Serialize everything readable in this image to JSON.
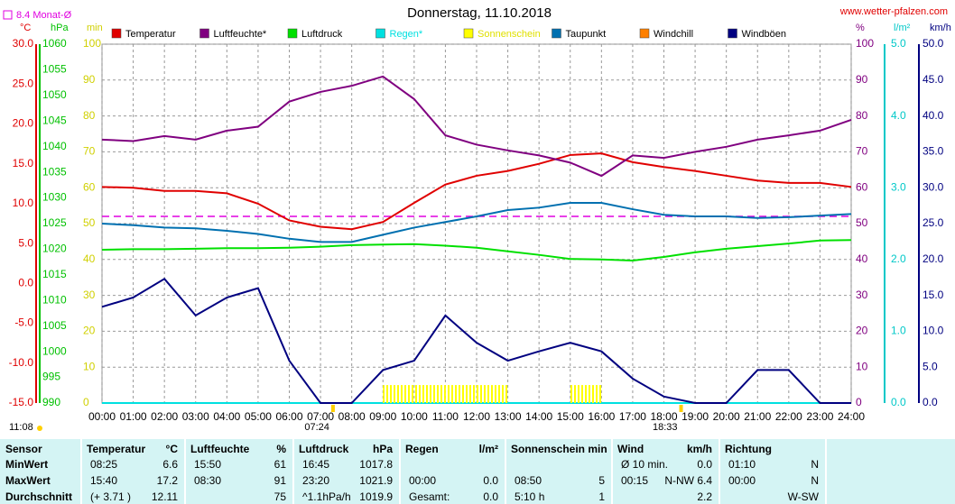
{
  "chart_data": {
    "type": "line",
    "title": "Donnerstag, 11.10.2018",
    "site": "www.wetter-pfalzen.com",
    "monthly_avg": {
      "label": "8.4 Monat-Ø",
      "value": 8.4,
      "color": "#e000e0",
      "axis": "y_temp"
    },
    "grid": true,
    "x": [
      0,
      1,
      2,
      3,
      4,
      5,
      6,
      7,
      8,
      9,
      10,
      11,
      12,
      13,
      14,
      15,
      16,
      17,
      18,
      19,
      20,
      21,
      22,
      23,
      24
    ],
    "xlim": [
      0,
      24
    ],
    "xticks": [
      {
        "value": 0,
        "label": "00:00"
      },
      {
        "value": 1,
        "label": "01:00"
      },
      {
        "value": 2,
        "label": "02:00"
      },
      {
        "value": 3,
        "label": "03:00"
      },
      {
        "value": 4,
        "label": "04:00"
      },
      {
        "value": 5,
        "label": "05:00"
      },
      {
        "value": 6,
        "label": "06:00"
      },
      {
        "value": 7,
        "label": "07:00"
      },
      {
        "value": 8,
        "label": "08:00"
      },
      {
        "value": 9,
        "label": "09:00"
      },
      {
        "value": 10,
        "label": "10:00"
      },
      {
        "value": 11,
        "label": "11:00"
      },
      {
        "value": 12,
        "label": "12:00"
      },
      {
        "value": 13,
        "label": "13:00"
      },
      {
        "value": 14,
        "label": "14:00"
      },
      {
        "value": 15,
        "label": "15:00"
      },
      {
        "value": 16,
        "label": "16:00"
      },
      {
        "value": 17,
        "label": "17:00"
      },
      {
        "value": 18,
        "label": "18:00"
      },
      {
        "value": 19,
        "label": "19:00"
      },
      {
        "value": 20,
        "label": "20:00"
      },
      {
        "value": 21,
        "label": "21:00"
      },
      {
        "value": 22,
        "label": "22:00"
      },
      {
        "value": 23,
        "label": "23:00"
      },
      {
        "value": 24,
        "label": "24:00"
      }
    ],
    "axes": {
      "y_temp": {
        "unit": "°C",
        "color": "#e00000",
        "lim": [
          -15,
          30
        ],
        "ticks": [
          {
            "value": -15,
            "label": "-15.0"
          },
          {
            "value": -10,
            "label": "-10.0"
          },
          {
            "value": -5,
            "label": "-5.0"
          },
          {
            "value": 0,
            "label": "0.0"
          },
          {
            "value": 5,
            "label": "5.0"
          },
          {
            "value": 10,
            "label": "10.0"
          },
          {
            "value": 15,
            "label": "15.0"
          },
          {
            "value": 20,
            "label": "20.0"
          },
          {
            "value": 25,
            "label": "25.0"
          },
          {
            "value": 30,
            "label": "30.0"
          }
        ]
      },
      "y_press": {
        "unit": "hPa",
        "color": "#00c000",
        "lim": [
          990,
          1060
        ],
        "ticks": [
          990,
          995,
          1000,
          1005,
          1010,
          1015,
          1020,
          1025,
          1030,
          1035,
          1040,
          1045,
          1050,
          1055,
          1060
        ]
      },
      "y_min": {
        "unit": "min",
        "color": "#d0d000",
        "lim": [
          0,
          100
        ],
        "ticks": [
          0,
          10,
          20,
          30,
          40,
          50,
          60,
          70,
          80,
          90,
          100
        ]
      },
      "y_pct": {
        "unit": "%",
        "color": "#800080",
        "lim": [
          0,
          100
        ],
        "ticks": [
          0,
          10,
          20,
          30,
          40,
          50,
          60,
          70,
          80,
          90,
          100
        ]
      },
      "y_rain": {
        "unit": "l/m²",
        "color": "#00c8c8",
        "lim": [
          0,
          5
        ],
        "ticks": [
          {
            "value": 0,
            "label": "0.0"
          },
          {
            "value": 1,
            "label": "1.0"
          },
          {
            "value": 2,
            "label": "2.0"
          },
          {
            "value": 3,
            "label": "3.0"
          },
          {
            "value": 4,
            "label": "4.0"
          },
          {
            "value": 5,
            "label": "5.0"
          }
        ]
      },
      "y_wind": {
        "unit": "km/h",
        "color": "#000080",
        "lim": [
          0,
          50
        ],
        "ticks": [
          {
            "value": 0,
            "label": "0.0"
          },
          {
            "value": 5,
            "label": "5.0"
          },
          {
            "value": 10,
            "label": "10.0"
          },
          {
            "value": 15,
            "label": "15.0"
          },
          {
            "value": 20,
            "label": "20.0"
          },
          {
            "value": 25,
            "label": "25.0"
          },
          {
            "value": 30,
            "label": "30.0"
          },
          {
            "value": 35,
            "label": "35.0"
          },
          {
            "value": 40,
            "label": "40.0"
          },
          {
            "value": 45,
            "label": "45.0"
          },
          {
            "value": 50,
            "label": "50.0"
          }
        ]
      }
    },
    "series": [
      {
        "name": "Temperatur",
        "color": "#e00000",
        "axis": "y_temp",
        "values": [
          12.1,
          12.0,
          11.6,
          11.6,
          11.3,
          10.0,
          7.9,
          7.1,
          6.8,
          7.7,
          10.1,
          12.4,
          13.5,
          14.1,
          15.0,
          16.1,
          16.3,
          15.2,
          14.6,
          14.1,
          13.5,
          12.9,
          12.6,
          12.6,
          12.1
        ]
      },
      {
        "name": "Luftfeuchte*",
        "color": "#800080",
        "axis": "y_pct",
        "values": [
          73.4,
          73,
          74.4,
          73.4,
          75.9,
          77,
          84,
          86.7,
          88.4,
          91,
          84.7,
          74.6,
          72,
          70.4,
          69,
          67,
          63.3,
          69,
          68.3,
          70,
          71.4,
          73.4,
          74.6,
          75.9,
          78.9
        ]
      },
      {
        "name": "Luftdruck",
        "color": "#00e000",
        "axis": "y_press",
        "values": [
          1019.9,
          1020.0,
          1020.0,
          1020.1,
          1020.2,
          1020.2,
          1020.3,
          1020.5,
          1020.8,
          1020.9,
          1021.0,
          1020.7,
          1020.3,
          1019.6,
          1018.9,
          1018.1,
          1018.0,
          1017.8,
          1018.5,
          1019.4,
          1020.1,
          1020.6,
          1021.1,
          1021.7,
          1021.8
        ]
      },
      {
        "name": "Regen*",
        "color": "#00e0e0",
        "label_color": "#00e0e0",
        "axis": "y_rain",
        "values": [
          0,
          0,
          0,
          0,
          0,
          0,
          0,
          0,
          0,
          0,
          0,
          0,
          0,
          0,
          0,
          0,
          0,
          0,
          0,
          0,
          0,
          0,
          0,
          0,
          0
        ]
      },
      {
        "name": "Sonnenschein",
        "color": "#ffff00",
        "label_color": "#e0e000",
        "axis": "y_min",
        "bars": true,
        "values": [
          0,
          0,
          0,
          0,
          0,
          0,
          0,
          0,
          0,
          5,
          5,
          5,
          5,
          0,
          0,
          5,
          0,
          0,
          0,
          0,
          0,
          0,
          0,
          0,
          0
        ]
      },
      {
        "name": "Taupunkt",
        "color": "#0070b0",
        "axis": "y_temp",
        "values": [
          7.5,
          7.3,
          7.0,
          6.9,
          6.6,
          6.2,
          5.6,
          5.2,
          5.2,
          6.1,
          7.0,
          7.7,
          8.4,
          9.2,
          9.5,
          10.1,
          10.1,
          9.3,
          8.6,
          8.4,
          8.4,
          8.2,
          8.3,
          8.5,
          8.7
        ]
      },
      {
        "name": "Windchill",
        "color": "#ff8000",
        "axis": "y_temp",
        "values": [
          null,
          null,
          null,
          null,
          null,
          null,
          null,
          null,
          null,
          null,
          null,
          null,
          null,
          null,
          null,
          null,
          null,
          null,
          null,
          null,
          null,
          null,
          null,
          null,
          null
        ]
      },
      {
        "name": "Windböen",
        "color": "#000080",
        "axis": "y_wind",
        "values": [
          13.4,
          14.7,
          17.3,
          12.2,
          14.7,
          16,
          5.9,
          0,
          0,
          4.6,
          5.9,
          12.2,
          8.4,
          5.9,
          7.2,
          8.4,
          7.2,
          3.4,
          0.9,
          0,
          0,
          4.6,
          4.6,
          0,
          0
        ]
      }
    ],
    "annotations": [
      {
        "text": "11:08"
      },
      {
        "text": "07:24",
        "x": 7.4
      },
      {
        "text": "18:33",
        "x": 18.55
      }
    ]
  },
  "table": {
    "columns": [
      {
        "header": [
          "Sensor"
        ],
        "rows": [
          [
            "MinWert"
          ],
          [
            "MaxWert"
          ],
          [
            "Durchschnitt"
          ]
        ]
      },
      {
        "header": [
          "Temperatur",
          "°C"
        ],
        "rows": [
          [
            "08:25",
            "6.6"
          ],
          [
            "15:40",
            "17.2"
          ],
          [
            "(+ 3.71 )",
            "12.11"
          ]
        ]
      },
      {
        "header": [
          "Luftfeuchte",
          "%"
        ],
        "rows": [
          [
            "15:50",
            "61"
          ],
          [
            "08:30",
            "91"
          ],
          [
            null,
            "75"
          ]
        ]
      },
      {
        "header": [
          "Luftdruck",
          "hPa"
        ],
        "rows": [
          [
            "16:45",
            "1017.8"
          ],
          [
            "23:20",
            "1021.9"
          ],
          [
            "^1.1hPa/h",
            "1019.9"
          ]
        ]
      },
      {
        "header": [
          "Regen",
          "l/m²"
        ],
        "rows": [
          [
            null,
            null
          ],
          [
            "00:00",
            "0.0"
          ],
          [
            "Gesamt:",
            "0.0"
          ]
        ]
      },
      {
        "header": [
          "Sonnenschein min"
        ],
        "rows": [
          [
            null,
            null
          ],
          [
            "08:50",
            "5"
          ],
          [
            "5:10 h",
            "1"
          ]
        ]
      },
      {
        "header": [
          "Wind",
          "km/h"
        ],
        "rows": [
          [
            "Ø 10 min.",
            "0.0"
          ],
          [
            "00:15",
            "N-NW 6.4"
          ],
          [
            null,
            "2.2"
          ]
        ]
      },
      {
        "header": [
          "Richtung"
        ],
        "rows": [
          [
            "01:10",
            "N"
          ],
          [
            "00:00",
            "N"
          ],
          [
            null,
            "W-SW"
          ]
        ]
      }
    ]
  }
}
